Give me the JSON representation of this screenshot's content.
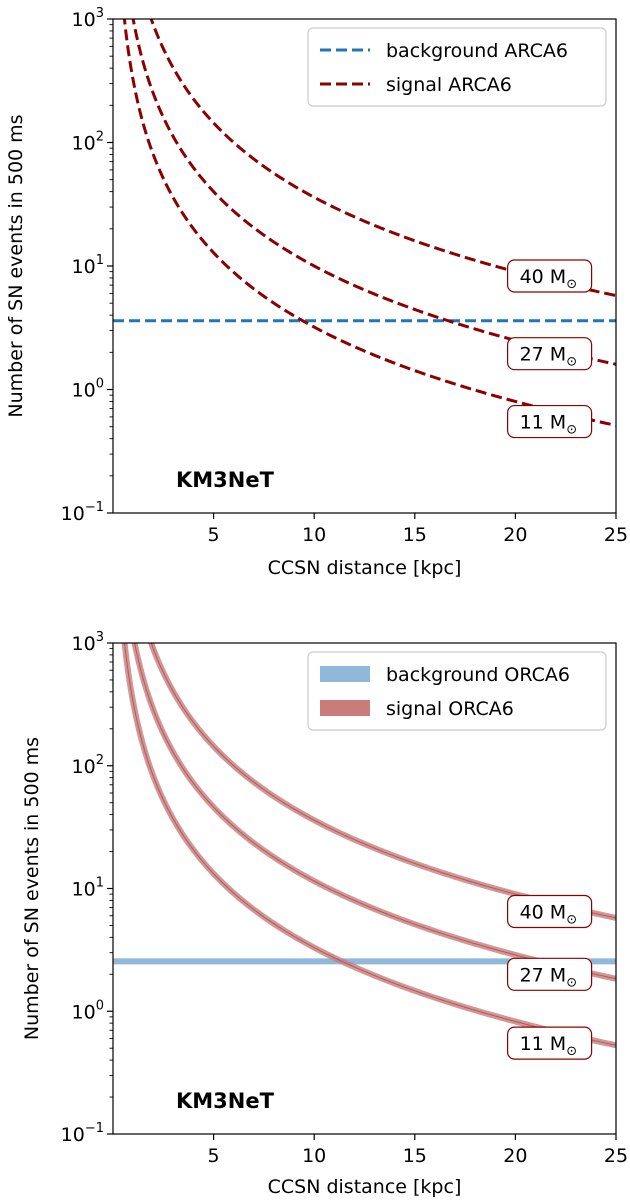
{
  "chart_data": [
    {
      "type": "line",
      "xlabel": "CCSN distance [kpc]",
      "ylabel": "Number of SN events in 500 ms",
      "xlim": [
        0,
        25
      ],
      "ylim": [
        0.1,
        1000
      ],
      "yscale": "log",
      "xticks": [
        5,
        10,
        15,
        20,
        25
      ],
      "yticks": [
        {
          "value": 0.1,
          "base": "10",
          "exp": "−1"
        },
        {
          "value": 1,
          "base": "10",
          "exp": "0"
        },
        {
          "value": 10,
          "base": "10",
          "exp": "1"
        },
        {
          "value": 100,
          "base": "10",
          "exp": "2"
        },
        {
          "value": 1000,
          "base": "10",
          "exp": "3"
        }
      ],
      "grid": false,
      "legend_position": "top-right",
      "legend": [
        {
          "label": "background ARCA6",
          "color": "#1f77b4",
          "style": "dashed"
        },
        {
          "label": "signal ARCA6",
          "color": "#8b0000",
          "style": "dashed"
        }
      ],
      "watermark": "KM3NeT",
      "background": {
        "value": 3.6,
        "color": "#1f77b4",
        "style": "dashed"
      },
      "series": [
        {
          "mass": "40",
          "unit": "M",
          "sun": "⊙",
          "coef": 3600,
          "color": "#8b0000",
          "label_at": {
            "x": 21.7,
            "y": 8.3
          }
        },
        {
          "mass": "27",
          "unit": "M",
          "sun": "⊙",
          "coef": 1000,
          "color": "#8b0000",
          "label_at": {
            "x": 21.7,
            "y": 1.95
          }
        },
        {
          "mass": "11",
          "unit": "M",
          "sun": "⊙",
          "coef": 320,
          "color": "#8b0000",
          "label_at": {
            "x": 21.7,
            "y": 0.55
          }
        }
      ]
    },
    {
      "type": "line",
      "xlabel": "CCSN distance [kpc]",
      "ylabel": "Number of SN events in 500 ms",
      "xlim": [
        0,
        25
      ],
      "ylim": [
        0.1,
        1000
      ],
      "yscale": "log",
      "xticks": [
        5,
        10,
        15,
        20,
        25
      ],
      "yticks": [
        {
          "value": 0.1,
          "base": "10",
          "exp": "−1"
        },
        {
          "value": 1,
          "base": "10",
          "exp": "0"
        },
        {
          "value": 10,
          "base": "10",
          "exp": "1"
        },
        {
          "value": 100,
          "base": "10",
          "exp": "2"
        },
        {
          "value": 1000,
          "base": "10",
          "exp": "3"
        }
      ],
      "grid": false,
      "legend_position": "top-right",
      "legend": [
        {
          "label": "background ORCA6",
          "color": "#8fb8d9",
          "style": "band"
        },
        {
          "label": "signal ORCA6",
          "color": "#c87c7c",
          "style": "band"
        }
      ],
      "watermark": "KM3NeT",
      "background": {
        "value": 2.55,
        "color": "#8fb8d9",
        "style": "band"
      },
      "series": [
        {
          "mass": "40",
          "unit": "M",
          "sun": "⊙",
          "coef": 3600,
          "color": "#c87c7c",
          "label_at": {
            "x": 21.7,
            "y": 6.5
          }
        },
        {
          "mass": "27",
          "unit": "M",
          "sun": "⊙",
          "coef": 1150,
          "color": "#c87c7c",
          "label_at": {
            "x": 21.7,
            "y": 2.0
          }
        },
        {
          "mass": "11",
          "unit": "M",
          "sun": "⊙",
          "coef": 330,
          "color": "#c87c7c",
          "label_at": {
            "x": 21.7,
            "y": 0.55
          }
        }
      ]
    }
  ]
}
